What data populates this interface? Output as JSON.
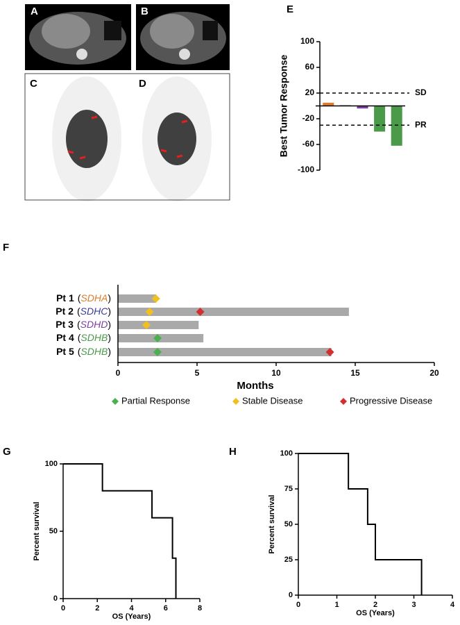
{
  "panel_labels": [
    "A",
    "B",
    "C",
    "D",
    "E",
    "F",
    "G",
    "H"
  ],
  "chart_data": [
    {
      "type": "bar",
      "ylabel": "Best Tumor Response",
      "categories": [
        null,
        null,
        null,
        null,
        null
      ],
      "values": [
        5,
        1,
        -4,
        -40,
        -62
      ],
      "colors": [
        "#e07b2a",
        "#3a3aa0",
        "#7b3fa0",
        "#4a9a4a",
        "#4a9a4a"
      ],
      "ylim": [
        -100,
        100
      ],
      "yticks": [
        -100,
        -60,
        -20,
        20,
        60,
        100
      ],
      "reference_lines": [
        {
          "value": 20,
          "label": "SD"
        },
        {
          "value": -30,
          "label": "PR"
        }
      ]
    },
    {
      "type": "swimmer",
      "xlabel": "Months",
      "categories": [
        "Pt 1",
        "Pt 2",
        "Pt 3",
        "Pt 4",
        "Pt 5"
      ],
      "genes": [
        "SDHA",
        "SDHC",
        "SDHD",
        "SDHB",
        "SDHB"
      ],
      "gene_colors": [
        "#e07b2a",
        "#3a3aa0",
        "#7b3fa0",
        "#4a9a4a",
        "#4a9a4a"
      ],
      "brackets": [
        "(",
        ")"
      ],
      "values": [
        2.4,
        14.6,
        5.1,
        5.4,
        13.5
      ],
      "color": "#a9a9a9",
      "xlim": [
        0,
        20
      ],
      "xticks": [
        0,
        5,
        10,
        15,
        20
      ],
      "series": [
        {
          "name": "Partial Response",
          "color": "#4caf50",
          "values": [
            null,
            null,
            null,
            2.5,
            2.5
          ]
        },
        {
          "name": "Stable Disease",
          "color": "#f2c01e",
          "values": [
            2.4,
            2.0,
            1.8,
            null,
            null
          ]
        },
        {
          "name": "Progressive Disease",
          "color": "#d32f2f",
          "values": [
            null,
            5.2,
            null,
            null,
            13.4
          ]
        }
      ]
    },
    {
      "type": "step",
      "xlabel": "OS (Years)",
      "ylabel": "Percent survival",
      "x": [
        0,
        2.3,
        5.2,
        6.4,
        6.6
      ],
      "values": [
        100,
        80,
        60,
        30,
        0
      ],
      "xlim": [
        0,
        8
      ],
      "xticks": [
        0,
        2,
        4,
        6,
        8
      ],
      "ylim": [
        0,
        100
      ],
      "yticks": [
        0,
        50,
        100
      ]
    },
    {
      "type": "step",
      "xlabel": "OS (Years)",
      "ylabel": "Percent survival",
      "x": [
        0,
        1.3,
        1.8,
        2.0,
        3.2
      ],
      "values": [
        100,
        75,
        50,
        25,
        0
      ],
      "xlim": [
        0,
        4
      ],
      "xticks": [
        0,
        1,
        2,
        3,
        4
      ],
      "ylim": [
        0,
        100
      ],
      "yticks": [
        0,
        25,
        50,
        75,
        100
      ]
    }
  ]
}
